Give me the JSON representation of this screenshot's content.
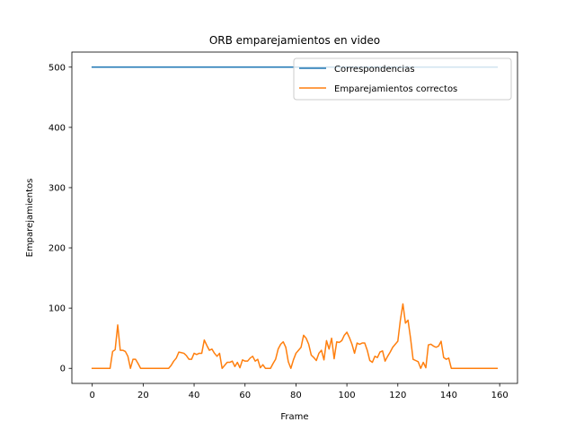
{
  "chart_data": {
    "type": "line",
    "title": "ORB emparejamientos en video",
    "xlabel": "Frame",
    "ylabel": "Emparejamientos",
    "xlim": [
      -8,
      167
    ],
    "ylim": [
      -25,
      525
    ],
    "xticks": [
      0,
      20,
      40,
      60,
      80,
      100,
      120,
      140,
      160
    ],
    "yticks": [
      0,
      100,
      200,
      300,
      400,
      500
    ],
    "grid": false,
    "legend_position": "top-right",
    "series": [
      {
        "name": "Correspondencias",
        "color": "#1f77b4",
        "values": [
          500,
          500,
          500,
          500,
          500,
          500,
          500,
          500,
          500,
          500,
          500,
          500,
          500,
          500,
          500,
          500,
          500,
          500,
          500,
          500,
          500,
          500,
          500,
          500,
          500,
          500,
          500,
          500,
          500,
          500,
          500,
          500,
          500,
          500,
          500,
          500,
          500,
          500,
          500,
          500,
          500,
          500,
          500,
          500,
          500,
          500,
          500,
          500,
          500,
          500,
          500,
          500,
          500,
          500,
          500,
          500,
          500,
          500,
          500,
          500,
          500,
          500,
          500,
          500,
          500,
          500,
          500,
          500,
          500,
          500,
          500,
          500,
          500,
          500,
          500,
          500,
          500,
          500,
          500,
          500,
          500,
          500,
          500,
          500,
          500,
          500,
          500,
          500,
          500,
          500,
          500,
          500,
          500,
          500,
          500,
          500,
          500,
          500,
          500,
          500,
          500,
          500,
          500,
          500,
          500,
          500,
          500,
          500,
          500,
          500,
          500,
          500,
          500,
          500,
          500,
          500,
          500,
          500,
          500,
          500,
          500,
          500,
          500,
          500,
          500,
          500,
          500,
          500,
          500,
          500,
          500,
          500,
          500,
          500,
          500,
          500,
          500,
          500,
          500,
          500,
          500,
          500,
          500,
          500,
          500,
          500,
          500,
          500,
          500,
          500,
          500,
          500,
          500,
          500,
          500,
          500,
          500,
          500,
          500,
          500
        ]
      },
      {
        "name": "Emparejamientos correctos",
        "color": "#ff7f0e",
        "values": [
          0,
          0,
          0,
          0,
          0,
          0,
          0,
          0,
          28,
          31,
          72,
          30,
          30,
          28,
          20,
          0,
          15,
          15,
          8,
          0,
          0,
          0,
          0,
          0,
          0,
          0,
          0,
          0,
          0,
          0,
          0,
          5,
          12,
          17,
          27,
          26,
          25,
          21,
          15,
          15,
          25,
          23,
          25,
          25,
          47,
          38,
          30,
          32,
          25,
          20,
          25,
          0,
          5,
          10,
          10,
          12,
          3,
          10,
          1,
          14,
          12,
          12,
          17,
          20,
          12,
          15,
          1,
          6,
          0,
          0,
          0,
          8,
          15,
          32,
          40,
          44,
          35,
          11,
          0,
          14,
          25,
          30,
          35,
          55,
          50,
          40,
          22,
          18,
          13,
          25,
          30,
          14,
          46,
          32,
          50,
          16,
          44,
          43,
          46,
          55,
          60,
          51,
          40,
          25,
          42,
          40,
          42,
          42,
          30,
          13,
          10,
          20,
          18,
          27,
          29,
          12,
          20,
          27,
          35,
          40,
          45,
          80,
          107,
          75,
          80,
          50,
          15,
          13,
          11,
          0,
          10,
          1,
          39,
          40,
          37,
          35,
          37,
          45,
          18,
          15,
          17,
          0,
          0,
          0,
          0,
          0,
          0,
          0,
          0,
          0,
          0,
          0,
          0,
          0,
          0,
          0,
          0,
          0,
          0,
          0
        ]
      }
    ]
  }
}
